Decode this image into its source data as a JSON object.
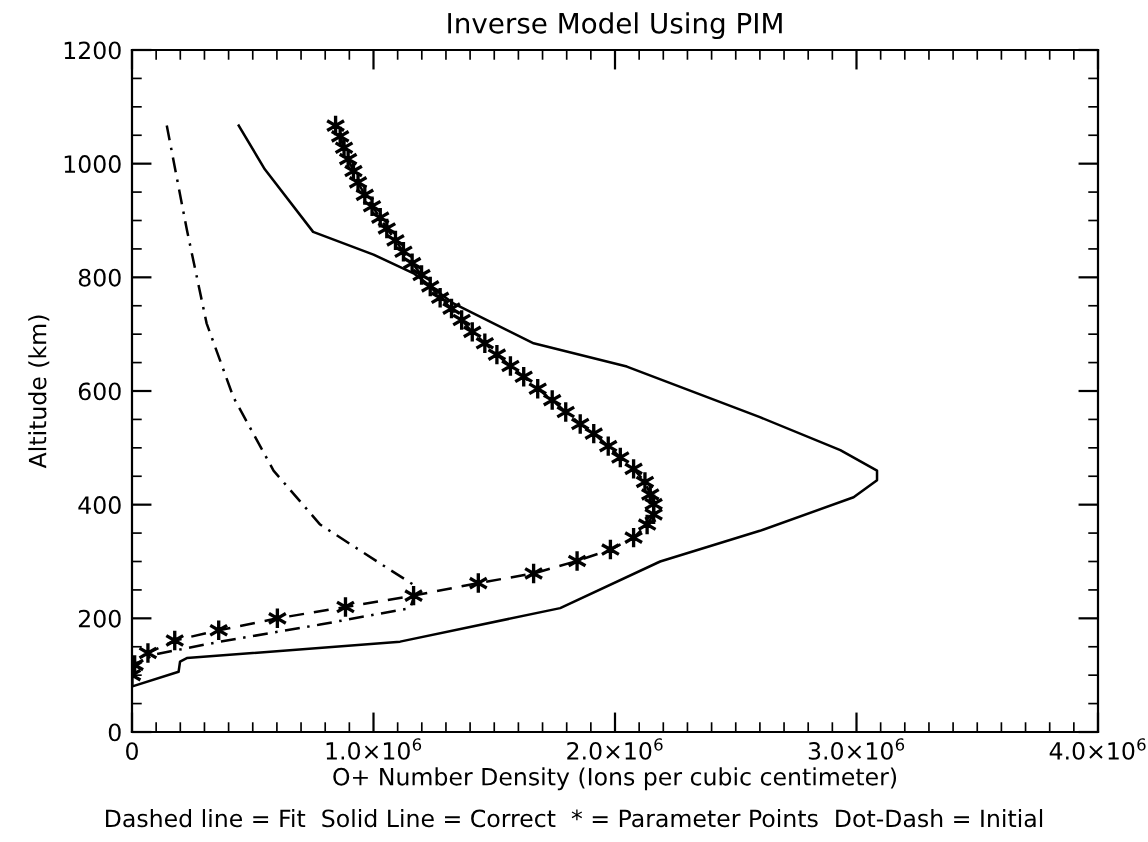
{
  "chart_data": {
    "type": "line",
    "title": "Inverse Model Using PIM",
    "xlabel": "O+ Number Density (Ions per cubic centimeter)",
    "ylabel": "Altitude (km)",
    "annotations": [
      "Dashed line = Fit  Solid Line = Correct  * = Parameter Points  Dot-Dash = Initial"
    ],
    "xlim": [
      0,
      4000000
    ],
    "ylim": [
      0,
      1200
    ],
    "xticks": [
      0,
      {
        "value": 1000000,
        "label": "1.0×10$^{6}$"
      },
      {
        "value": 2000000,
        "label": "2.0×10$^{6}$"
      },
      {
        "value": 3000000,
        "label": "3.0×10$^{6}$"
      },
      {
        "value": 4000000,
        "label": "4.0×10$^{6}$"
      }
    ],
    "yticks": [
      0,
      200,
      400,
      600,
      800,
      1000,
      1200
    ],
    "grid": false,
    "legend": false,
    "series": [
      {
        "color": "#000000",
        "line_style": "solid",
        "marker": "none",
        "x": [
          442000,
          550000,
          750000,
          1000000,
          1166000,
          1331000,
          1663000,
          2049000,
          2600000,
          2933000,
          3085000,
          3085000,
          2988000,
          2600000,
          2187000,
          1773000,
          1110000,
          227000,
          199000,
          193000,
          0
        ],
        "values": [
          1067,
          990,
          880,
          840,
          807,
          754,
          684,
          643,
          554,
          496,
          460,
          443,
          413,
          354,
          300,
          218,
          159,
          130,
          124,
          106,
          80
        ]
      },
      {
        "color": "#000000",
        "line_style": "dashed",
        "marker": "cross",
        "x": [
          0,
          11000,
          66000,
          177000,
          359000,
          602000,
          884000,
          1166000,
          1434000,
          1663000,
          1843000,
          1981000,
          2077000,
          2133000,
          2160000,
          2160000,
          2146000,
          2124000,
          2077000,
          2022000,
          1972000,
          1912000,
          1856000,
          1796000,
          1740000,
          1680000,
          1622000,
          1567000,
          1511000,
          1461000,
          1409000,
          1365000,
          1323000,
          1276000,
          1235000,
          1199000,
          1160000,
          1124000,
          1091000,
          1055000,
          1028000,
          994000,
          964000,
          936000,
          917000,
          895000,
          878000,
          862000,
          843000
        ],
        "values": [
          100,
          118,
          139,
          161,
          179,
          200,
          220,
          240,
          262,
          279,
          301,
          321,
          342,
          365,
          383,
          401,
          418,
          440,
          463,
          483,
          503,
          525,
          542,
          563,
          584,
          604,
          625,
          644,
          664,
          684,
          704,
          725,
          745,
          764,
          784,
          804,
          825,
          845,
          865,
          886,
          905,
          925,
          945,
          967,
          987,
          1008,
          1028,
          1048,
          1067
        ]
      },
      {
        "color": "#000000",
        "line_style": "dashdot",
        "marker": "none",
        "x": [
          144000,
          227000,
          309000,
          420000,
          586000,
          779000,
          1055000,
          1166000,
          1166000,
          1152000,
          779000,
          365000,
          88000,
          0
        ],
        "values": [
          1067,
          884,
          719,
          589,
          460,
          365,
          289,
          259,
          236,
          218,
          189,
          159,
          136,
          112
        ]
      }
    ]
  }
}
